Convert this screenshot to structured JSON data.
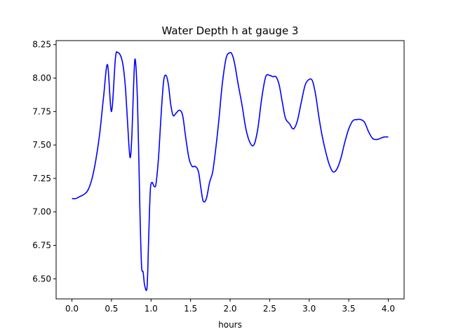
{
  "chart_data": {
    "type": "line",
    "title": "Water Depth h at gauge 3",
    "xlabel": "hours",
    "ylabel": "",
    "xlim": [
      -0.2,
      4.2
    ],
    "ylim": [
      6.35,
      8.28
    ],
    "xticks": [
      0.0,
      0.5,
      1.0,
      1.5,
      2.0,
      2.5,
      3.0,
      3.5,
      4.0
    ],
    "xtick_labels": [
      "0.0",
      "0.5",
      "1.0",
      "1.5",
      "2.0",
      "2.5",
      "3.0",
      "3.5",
      "4.0"
    ],
    "yticks": [
      6.5,
      6.75,
      7.0,
      7.25,
      7.5,
      7.75,
      8.0,
      8.25
    ],
    "ytick_labels": [
      "6.50",
      "6.75",
      "7.00",
      "7.25",
      "7.50",
      "7.75",
      "8.00",
      "8.25"
    ],
    "grid": false,
    "series": [
      {
        "color": "#0000ff",
        "x": [
          0.0,
          0.05,
          0.1,
          0.15,
          0.2,
          0.25,
          0.3,
          0.35,
          0.4,
          0.45,
          0.5,
          0.55,
          0.58,
          0.62,
          0.65,
          0.68,
          0.72,
          0.74,
          0.76,
          0.78,
          0.8,
          0.83,
          0.86,
          0.88,
          0.9,
          0.92,
          0.95,
          0.97,
          0.99,
          1.01,
          1.04,
          1.06,
          1.08,
          1.1,
          1.13,
          1.16,
          1.19,
          1.22,
          1.25,
          1.28,
          1.32,
          1.36,
          1.4,
          1.44,
          1.48,
          1.52,
          1.56,
          1.6,
          1.63,
          1.66,
          1.7,
          1.74,
          1.78,
          1.82,
          1.86,
          1.9,
          1.95,
          2.0,
          2.03,
          2.06,
          2.1,
          2.15,
          2.2,
          2.25,
          2.3,
          2.35,
          2.4,
          2.45,
          2.5,
          2.54,
          2.58,
          2.62,
          2.66,
          2.7,
          2.75,
          2.8,
          2.85,
          2.9,
          2.95,
          3.0,
          3.04,
          3.08,
          3.12,
          3.16,
          3.2,
          3.25,
          3.3,
          3.35,
          3.4,
          3.45,
          3.5,
          3.55,
          3.6,
          3.65,
          3.7,
          3.75,
          3.8,
          3.85,
          3.9,
          3.95,
          4.0
        ],
        "y": [
          7.1,
          7.1,
          7.115,
          7.13,
          7.16,
          7.24,
          7.38,
          7.58,
          7.86,
          8.1,
          7.75,
          8.15,
          8.19,
          8.16,
          8.08,
          7.9,
          7.5,
          7.41,
          7.6,
          7.95,
          8.14,
          7.8,
          7.0,
          6.6,
          6.55,
          6.45,
          6.44,
          6.8,
          7.15,
          7.22,
          7.19,
          7.2,
          7.3,
          7.45,
          7.75,
          7.98,
          8.02,
          7.95,
          7.8,
          7.72,
          7.74,
          7.76,
          7.72,
          7.55,
          7.4,
          7.34,
          7.34,
          7.3,
          7.18,
          7.08,
          7.1,
          7.22,
          7.3,
          7.48,
          7.7,
          7.95,
          8.15,
          8.19,
          8.17,
          8.1,
          7.96,
          7.8,
          7.62,
          7.52,
          7.5,
          7.62,
          7.85,
          8.01,
          8.02,
          8.01,
          8.01,
          7.95,
          7.82,
          7.7,
          7.66,
          7.62,
          7.68,
          7.82,
          7.95,
          7.99,
          7.98,
          7.88,
          7.72,
          7.58,
          7.47,
          7.36,
          7.3,
          7.32,
          7.4,
          7.52,
          7.62,
          7.68,
          7.69,
          7.69,
          7.67,
          7.6,
          7.55,
          7.54,
          7.55,
          7.56,
          7.56
        ]
      }
    ]
  }
}
